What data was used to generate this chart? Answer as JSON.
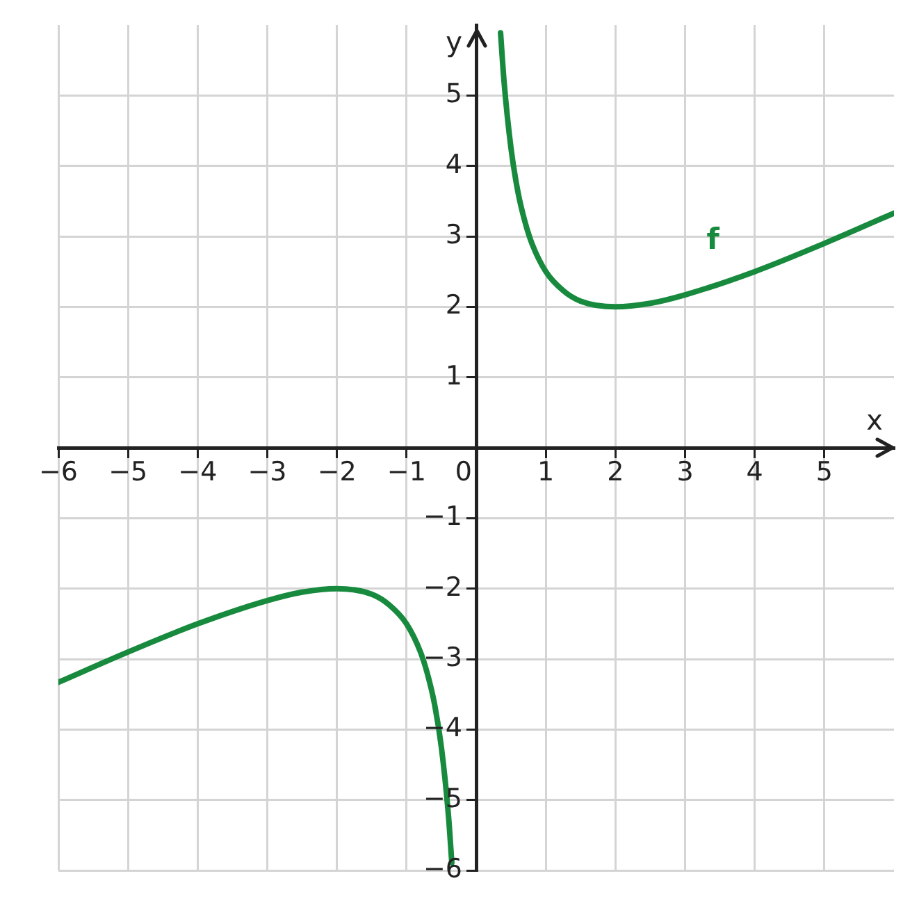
{
  "chart_data": {
    "type": "line",
    "xlabel": "x",
    "ylabel": "y",
    "xlim": [
      -6,
      6
    ],
    "ylim": [
      -6,
      6
    ],
    "xticks": [
      {
        "value": -6,
        "label": "−6"
      },
      {
        "value": -5,
        "label": "−5"
      },
      {
        "value": -4,
        "label": "−4"
      },
      {
        "value": -3,
        "label": "−3"
      },
      {
        "value": -2,
        "label": "−2"
      },
      {
        "value": -1,
        "label": "−1"
      },
      0,
      1,
      2,
      3,
      4,
      5
    ],
    "yticks": [
      {
        "value": -6,
        "label": "−6"
      },
      {
        "value": -5,
        "label": "−5"
      },
      {
        "value": -4,
        "label": "−4"
      },
      {
        "value": -3,
        "label": "−3"
      },
      {
        "value": -2,
        "label": "−2"
      },
      {
        "value": -1,
        "label": "−1"
      },
      {
        "value": 0,
        "label": null
      },
      1,
      2,
      3,
      4,
      5
    ],
    "grid": true,
    "legend": false,
    "marker": "none",
    "line_style": "solid",
    "series": [
      {
        "name": "f",
        "color": "#178a3e",
        "x": [
          -6,
          -5,
          -4,
          -3,
          -2.5,
          -2,
          -1.5,
          -1.25,
          -1,
          -0.8,
          -0.7,
          -0.6,
          -0.5,
          -0.4,
          -0.35,
          0,
          0.35,
          0.4,
          0.5,
          0.6,
          0.7,
          0.8,
          1,
          1.25,
          1.5,
          2,
          2.5,
          3,
          4,
          5,
          6
        ],
        "values": [
          -3.33,
          -2.9,
          -2.5,
          -2.17,
          -2.05,
          -2,
          -2.08,
          -2.23,
          -2.5,
          -2.9,
          -3.21,
          -3.63,
          -4.25,
          -5.2,
          -5.89,
          null,
          5.89,
          5.2,
          4.25,
          3.63,
          3.21,
          2.9,
          2.5,
          2.23,
          2.08,
          2,
          2.05,
          2.17,
          2.5,
          2.9,
          3.33
        ]
      }
    ]
  }
}
